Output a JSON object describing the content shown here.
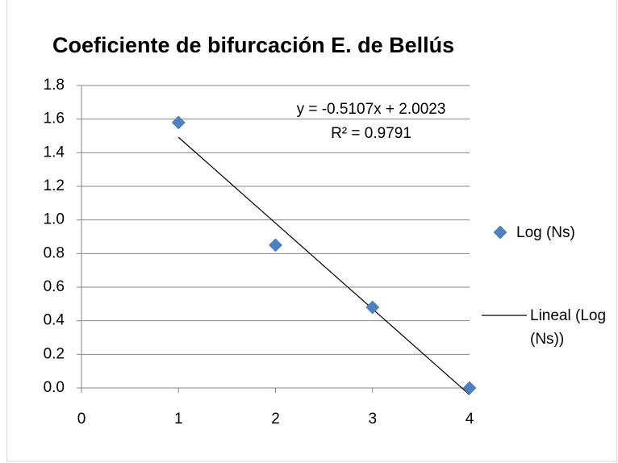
{
  "chart_data": {
    "type": "scatter",
    "title": "Coeficiente de bifurcación E. de Bellús",
    "series": [
      {
        "name": "Log (Ns)",
        "color": "#4f81bd",
        "x": [
          1,
          2,
          3,
          4
        ],
        "values": [
          1.58,
          0.85,
          0.48,
          0
        ]
      }
    ],
    "trendline": {
      "name": "Lineal (Log (Ns))",
      "color": "#000000",
      "slope": -0.5107,
      "intercept": 2.0023,
      "label": "y = -0.5107x + 2.0023",
      "r2_label": "R² = 0.9791"
    },
    "xlim": [
      0,
      4
    ],
    "xticks": [
      0,
      1,
      2,
      3,
      4
    ],
    "ylim": [
      0,
      1.8
    ],
    "yticks": [
      {
        "value": 0,
        "label": "0.0"
      },
      {
        "value": 0.2,
        "label": "0.2"
      },
      {
        "value": 0.4,
        "label": "0.4"
      },
      {
        "value": 0.6,
        "label": "0.6"
      },
      {
        "value": 0.8,
        "label": "0.8"
      },
      {
        "value": 1,
        "label": "1.0"
      },
      {
        "value": 1.2,
        "label": "1.2"
      },
      {
        "value": 1.4,
        "label": "1.4"
      },
      {
        "value": 1.6,
        "label": "1.6"
      },
      {
        "value": 1.8,
        "label": "1.8"
      }
    ],
    "grid": true,
    "legend": "right"
  }
}
